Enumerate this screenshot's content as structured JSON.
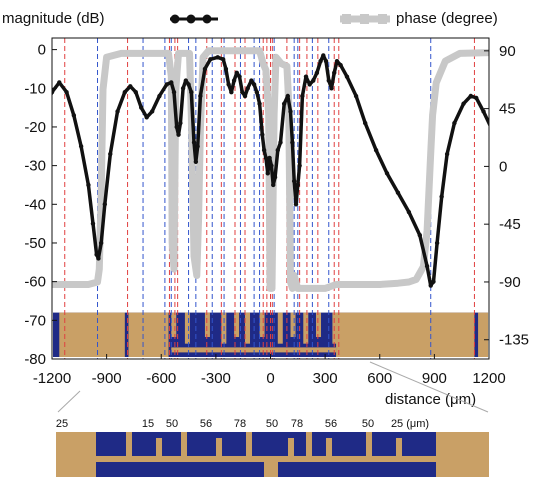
{
  "chart_data": {
    "type": "line",
    "xlabel": "distance (μm)",
    "xlim": [
      -1200,
      1200
    ],
    "x_ticks": [
      -1200,
      -900,
      -600,
      -300,
      0,
      300,
      600,
      900,
      1200
    ],
    "left_axis": {
      "ylim": [
        -80,
        3
      ],
      "ticks": [
        0,
        -10,
        -20,
        -30,
        -40,
        -50,
        -60,
        -70,
        -80
      ]
    },
    "right_axis": {
      "ylim": [
        -150,
        100
      ],
      "ticks": [
        90,
        45,
        0,
        -45,
        -90,
        -135
      ]
    },
    "grid": false,
    "legend_placement": "top",
    "series": [
      {
        "name": "magnitude (dB)",
        "axis": "left",
        "color": "#111111",
        "points": [
          [
            -1300,
            -22
          ],
          [
            -1250,
            -16
          ],
          [
            -1200,
            -11
          ],
          [
            -1160,
            -8.5
          ],
          [
            -1120,
            -11
          ],
          [
            -1080,
            -17
          ],
          [
            -1040,
            -25
          ],
          [
            -1000,
            -35
          ],
          [
            -975,
            -45
          ],
          [
            -955,
            -53
          ],
          [
            -945,
            -54
          ],
          [
            -930,
            -50
          ],
          [
            -910,
            -40
          ],
          [
            -880,
            -27
          ],
          [
            -840,
            -16
          ],
          [
            -800,
            -11
          ],
          [
            -770,
            -9.5
          ],
          [
            -740,
            -11
          ],
          [
            -710,
            -15
          ],
          [
            -680,
            -17.5
          ],
          [
            -650,
            -16
          ],
          [
            -610,
            -12
          ],
          [
            -570,
            -9
          ],
          [
            -545,
            -8.5
          ],
          [
            -530,
            -11
          ],
          [
            -515,
            -20
          ],
          [
            -505,
            -22
          ],
          [
            -495,
            -19
          ],
          [
            -480,
            -10
          ],
          [
            -465,
            -8
          ],
          [
            -450,
            -9
          ],
          [
            -435,
            -11
          ],
          [
            -420,
            -24
          ],
          [
            -410,
            -29
          ],
          [
            -400,
            -25
          ],
          [
            -385,
            -12
          ],
          [
            -360,
            -5
          ],
          [
            -330,
            -2.5
          ],
          [
            -290,
            -2
          ],
          [
            -260,
            -2.5
          ],
          [
            -245,
            -5
          ],
          [
            -230,
            -9
          ],
          [
            -215,
            -11
          ],
          [
            -200,
            -8
          ],
          [
            -185,
            -6
          ],
          [
            -170,
            -7
          ],
          [
            -155,
            -11
          ],
          [
            -140,
            -12
          ],
          [
            -125,
            -10
          ],
          [
            -105,
            -8
          ],
          [
            -90,
            -9
          ],
          [
            -75,
            -11
          ],
          [
            -60,
            -14
          ],
          [
            -45,
            -22
          ],
          [
            -35,
            -26
          ],
          [
            -25,
            -28
          ],
          [
            -15,
            -32
          ],
          [
            -5,
            -28
          ],
          [
            5,
            -30
          ],
          [
            15,
            -35
          ],
          [
            25,
            -33
          ],
          [
            40,
            -26
          ],
          [
            55,
            -24
          ],
          [
            75,
            -14
          ],
          [
            95,
            -12
          ],
          [
            110,
            -16
          ],
          [
            120,
            -24
          ],
          [
            130,
            -34
          ],
          [
            140,
            -40
          ],
          [
            150,
            -35
          ],
          [
            160,
            -30
          ],
          [
            175,
            -12
          ],
          [
            195,
            -7
          ],
          [
            215,
            -9
          ],
          [
            235,
            -8
          ],
          [
            255,
            -6
          ],
          [
            275,
            -3
          ],
          [
            290,
            -1.5
          ],
          [
            305,
            -3
          ],
          [
            320,
            -8
          ],
          [
            335,
            -10
          ],
          [
            350,
            -6
          ],
          [
            365,
            -3
          ],
          [
            385,
            -4
          ],
          [
            420,
            -7
          ],
          [
            470,
            -12
          ],
          [
            520,
            -19
          ],
          [
            580,
            -26
          ],
          [
            640,
            -32
          ],
          [
            700,
            -37
          ],
          [
            760,
            -42
          ],
          [
            820,
            -48
          ],
          [
            860,
            -56
          ],
          [
            880,
            -61
          ],
          [
            895,
            -60
          ],
          [
            915,
            -50
          ],
          [
            940,
            -38
          ],
          [
            970,
            -27
          ],
          [
            1010,
            -19
          ],
          [
            1060,
            -14
          ],
          [
            1100,
            -12
          ],
          [
            1130,
            -12.5
          ],
          [
            1170,
            -16
          ],
          [
            1210,
            -20
          ],
          [
            1260,
            -26
          ]
        ]
      },
      {
        "name": "phase (degree)",
        "axis": "right",
        "color": "#c8c8c8",
        "points": [
          [
            -1300,
            -92
          ],
          [
            -1000,
            -92
          ],
          [
            -950,
            -90
          ],
          [
            -940,
            -80
          ],
          [
            -930,
            -20
          ],
          [
            -920,
            60
          ],
          [
            -900,
            85
          ],
          [
            -820,
            88
          ],
          [
            -560,
            88
          ],
          [
            -545,
            70
          ],
          [
            -540,
            -60
          ],
          [
            -530,
            -80
          ],
          [
            -520,
            60
          ],
          [
            -505,
            88
          ],
          [
            -445,
            88
          ],
          [
            -435,
            40
          ],
          [
            -420,
            -70
          ],
          [
            -405,
            -85
          ],
          [
            -395,
            -40
          ],
          [
            -385,
            30
          ],
          [
            -370,
            85
          ],
          [
            -340,
            90
          ],
          [
            -60,
            90
          ],
          [
            -40,
            80
          ],
          [
            -25,
            75
          ],
          [
            -10,
            40
          ],
          [
            -2,
            -95
          ],
          [
            8,
            -95
          ],
          [
            20,
            40
          ],
          [
            30,
            85
          ],
          [
            60,
            80
          ],
          [
            90,
            78
          ],
          [
            100,
            50
          ],
          [
            110,
            -90
          ],
          [
            120,
            -95
          ],
          [
            130,
            -85
          ],
          [
            140,
            -90
          ],
          [
            150,
            -95
          ],
          [
            300,
            -95
          ],
          [
            360,
            -92
          ],
          [
            600,
            -92
          ],
          [
            700,
            -91
          ],
          [
            760,
            -90
          ],
          [
            800,
            -88
          ],
          [
            840,
            -78
          ],
          [
            860,
            -50
          ],
          [
            870,
            -20
          ],
          [
            880,
            10
          ],
          [
            890,
            40
          ],
          [
            910,
            65
          ],
          [
            960,
            82
          ],
          [
            1040,
            88
          ],
          [
            1300,
            89
          ]
        ]
      }
    ],
    "markers": {
      "red_dashed_x": [
        -1130,
        -785,
        -555,
        -525,
        -510,
        -350,
        -270,
        -195,
        -140,
        -40,
        -20,
        0,
        10,
        90,
        160,
        200,
        260,
        350,
        375,
        1120
      ],
      "blue_dashed_x": [
        -950,
        -700,
        -580,
        -545,
        -450,
        -410,
        -320,
        -255,
        -165,
        -90,
        -60,
        20,
        130,
        150,
        230,
        320,
        880
      ]
    }
  },
  "legend": {
    "magnitude_label": "magnitude (dB)",
    "phase_label": "phase (degree)"
  },
  "inset": {
    "scale_labels": [
      "25",
      "15",
      "50",
      "56",
      "78",
      "50",
      "78",
      "56",
      "50",
      "25 (μm)"
    ],
    "colors": {
      "substrate": "#1f2a86",
      "metal": "#c9a066"
    }
  }
}
